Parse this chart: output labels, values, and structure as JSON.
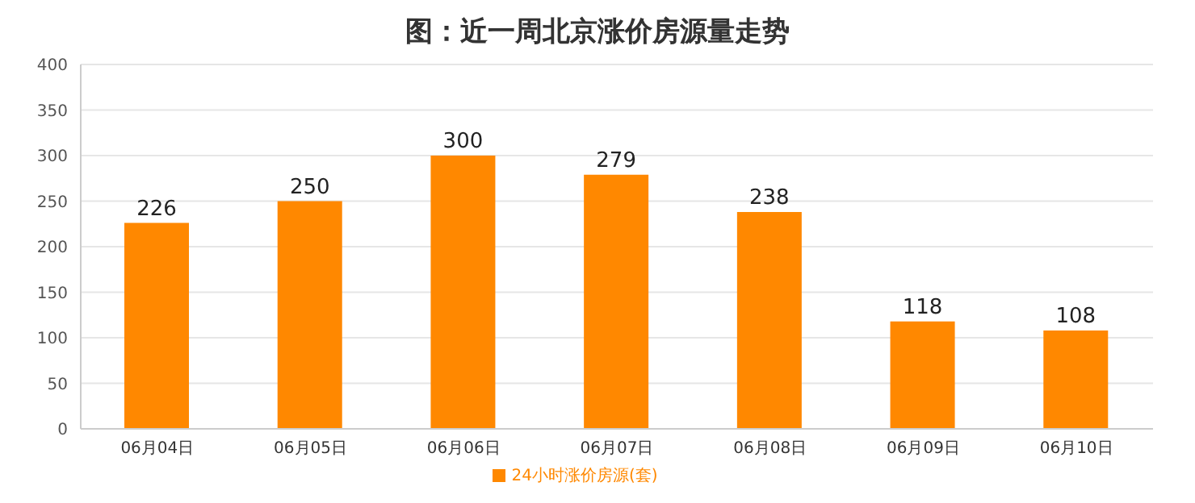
{
  "chart_data": {
    "type": "bar",
    "title": "图：近一周北京涨价房源量走势",
    "categories": [
      "06月04日",
      "06月05日",
      "06月06日",
      "06月07日",
      "06月08日",
      "06月09日",
      "06月10日"
    ],
    "series": [
      {
        "name": "24小时涨价房源(套)",
        "color": "#ff8800",
        "values": [
          226,
          250,
          300,
          279,
          238,
          118,
          108
        ]
      }
    ],
    "ylim": [
      0,
      400
    ],
    "yticks": [
      0,
      50,
      100,
      150,
      200,
      250,
      300,
      350,
      400
    ],
    "grid": "y",
    "legend": "bottom",
    "data_labels": true
  }
}
